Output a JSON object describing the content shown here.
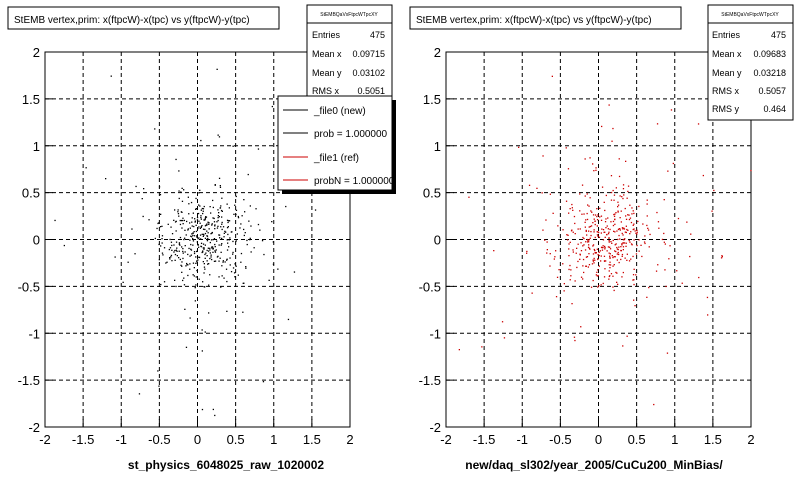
{
  "chart_data": [
    {
      "type": "scatter",
      "title": "StEMB  vertex,prim: x(ftpcW)-x(tpc) vs y(ftpcW)-y(tpc)",
      "xlabel": "st_physics_6048025_raw_1020002",
      "ylabel": "",
      "xlim": [
        -2,
        2
      ],
      "ylim": [
        -2,
        2
      ],
      "x_ticks": [
        "-2",
        "-1.5",
        "-1",
        "-0.5",
        "0",
        "0.5",
        "1",
        "1.5",
        "2"
      ],
      "y_ticks": [
        "2",
        "1.5",
        "1",
        "0.5",
        "0",
        "-0.5",
        "-1",
        "-1.5",
        "-2"
      ],
      "grid": true,
      "marker_color": "#000000",
      "stats": {
        "name": "StEMBQaVxFtpcWTpcXY",
        "rows": [
          {
            "label": "Entries",
            "value": "475"
          },
          {
            "label": "Mean x",
            "value": "0.09715"
          },
          {
            "label": "Mean y",
            "value": "0.03102"
          },
          {
            "label": "RMS x",
            "value": "0.5051"
          }
        ]
      },
      "legend": {
        "placement": "top-right",
        "entries": [
          {
            "label": "_file0 (new)",
            "color": "#000000"
          },
          {
            "label": "prob = 1.000000",
            "color": "#000000"
          },
          {
            "label": "_file1 (ref)",
            "color": "#cc0000"
          },
          {
            "label": "probN = 1.000000",
            "color": "#cc0000"
          }
        ]
      }
    },
    {
      "type": "scatter",
      "title": "StEMB  vertex,prim: x(ftpcW)-x(tpc) vs y(ftpcW)-y(tpc)",
      "xlabel": "new/daq_sl302/year_2005/CuCu200_MinBias/",
      "ylabel": "",
      "xlim": [
        -2,
        2
      ],
      "ylim": [
        -2,
        2
      ],
      "x_ticks": [
        "-2",
        "-1.5",
        "-1",
        "-0.5",
        "0",
        "0.5",
        "1",
        "1.5",
        "2"
      ],
      "y_ticks": [
        "2",
        "1.5",
        "1",
        "0.5",
        "0",
        "-0.5",
        "-1",
        "-1.5",
        "-2"
      ],
      "grid": true,
      "marker_color": "#cc0000",
      "stats": {
        "name": "StEMBQaVxFtpcWTpcXY",
        "rows": [
          {
            "label": "Entries",
            "value": "475"
          },
          {
            "label": "Mean x",
            "value": "0.09683"
          },
          {
            "label": "Mean y",
            "value": "0.03218"
          },
          {
            "label": "RMS x",
            "value": "0.5057"
          },
          {
            "label": "RMS y",
            "value": "0.464"
          }
        ]
      }
    }
  ]
}
